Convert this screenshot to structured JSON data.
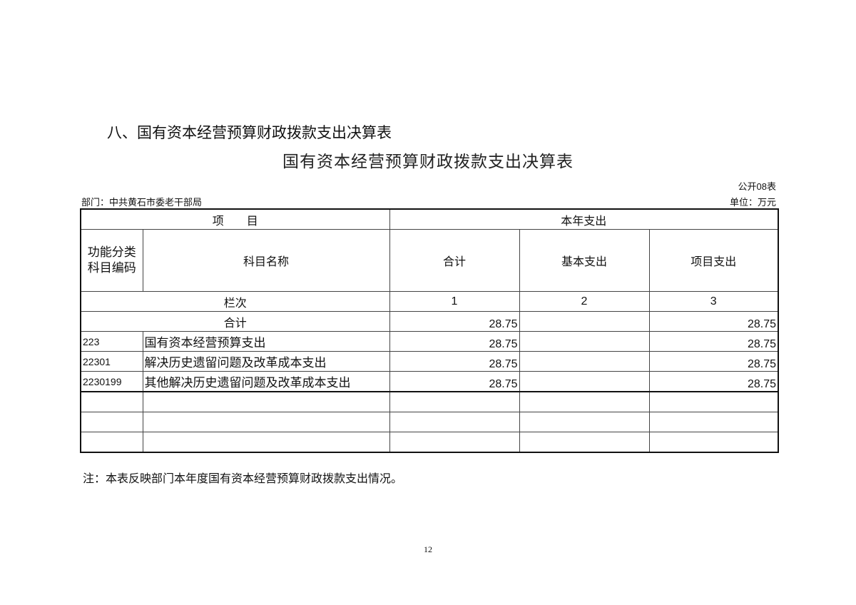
{
  "heading": "八、国有资本经营预算财政拨款支出决算表",
  "title": "国有资本经营预算财政拨款支出决算表",
  "form_no": "公开08表",
  "department": "部门：中共黄石市委老干部局",
  "unit": "单位：万元",
  "table": {
    "header_item": "项　　目",
    "header_current_year": "本年支出",
    "col_code": "功能分类科目编码",
    "col_name": "科目名称",
    "col_total": "合计",
    "col_basic": "基本支出",
    "col_project": "项目支出",
    "index_label": "栏次",
    "index_1": "1",
    "index_2": "2",
    "index_3": "3",
    "total_label": "合计",
    "total": {
      "total": "28.75",
      "basic": "",
      "project": "28.75"
    },
    "rows": [
      {
        "code": "223",
        "name": "国有资本经营预算支出",
        "total": "28.75",
        "basic": "",
        "project": "28.75"
      },
      {
        "code": "22301",
        "name": "解决历史遗留问题及改革成本支出",
        "total": "28.75",
        "basic": "",
        "project": "28.75"
      },
      {
        "code": "2230199",
        "name": "其他解决历史遗留问题及改革成本支出",
        "total": "28.75",
        "basic": "",
        "project": "28.75"
      }
    ]
  },
  "note": "注：本表反映部门本年度国有资本经营预算财政拨款支出情况。",
  "page_number": "12"
}
